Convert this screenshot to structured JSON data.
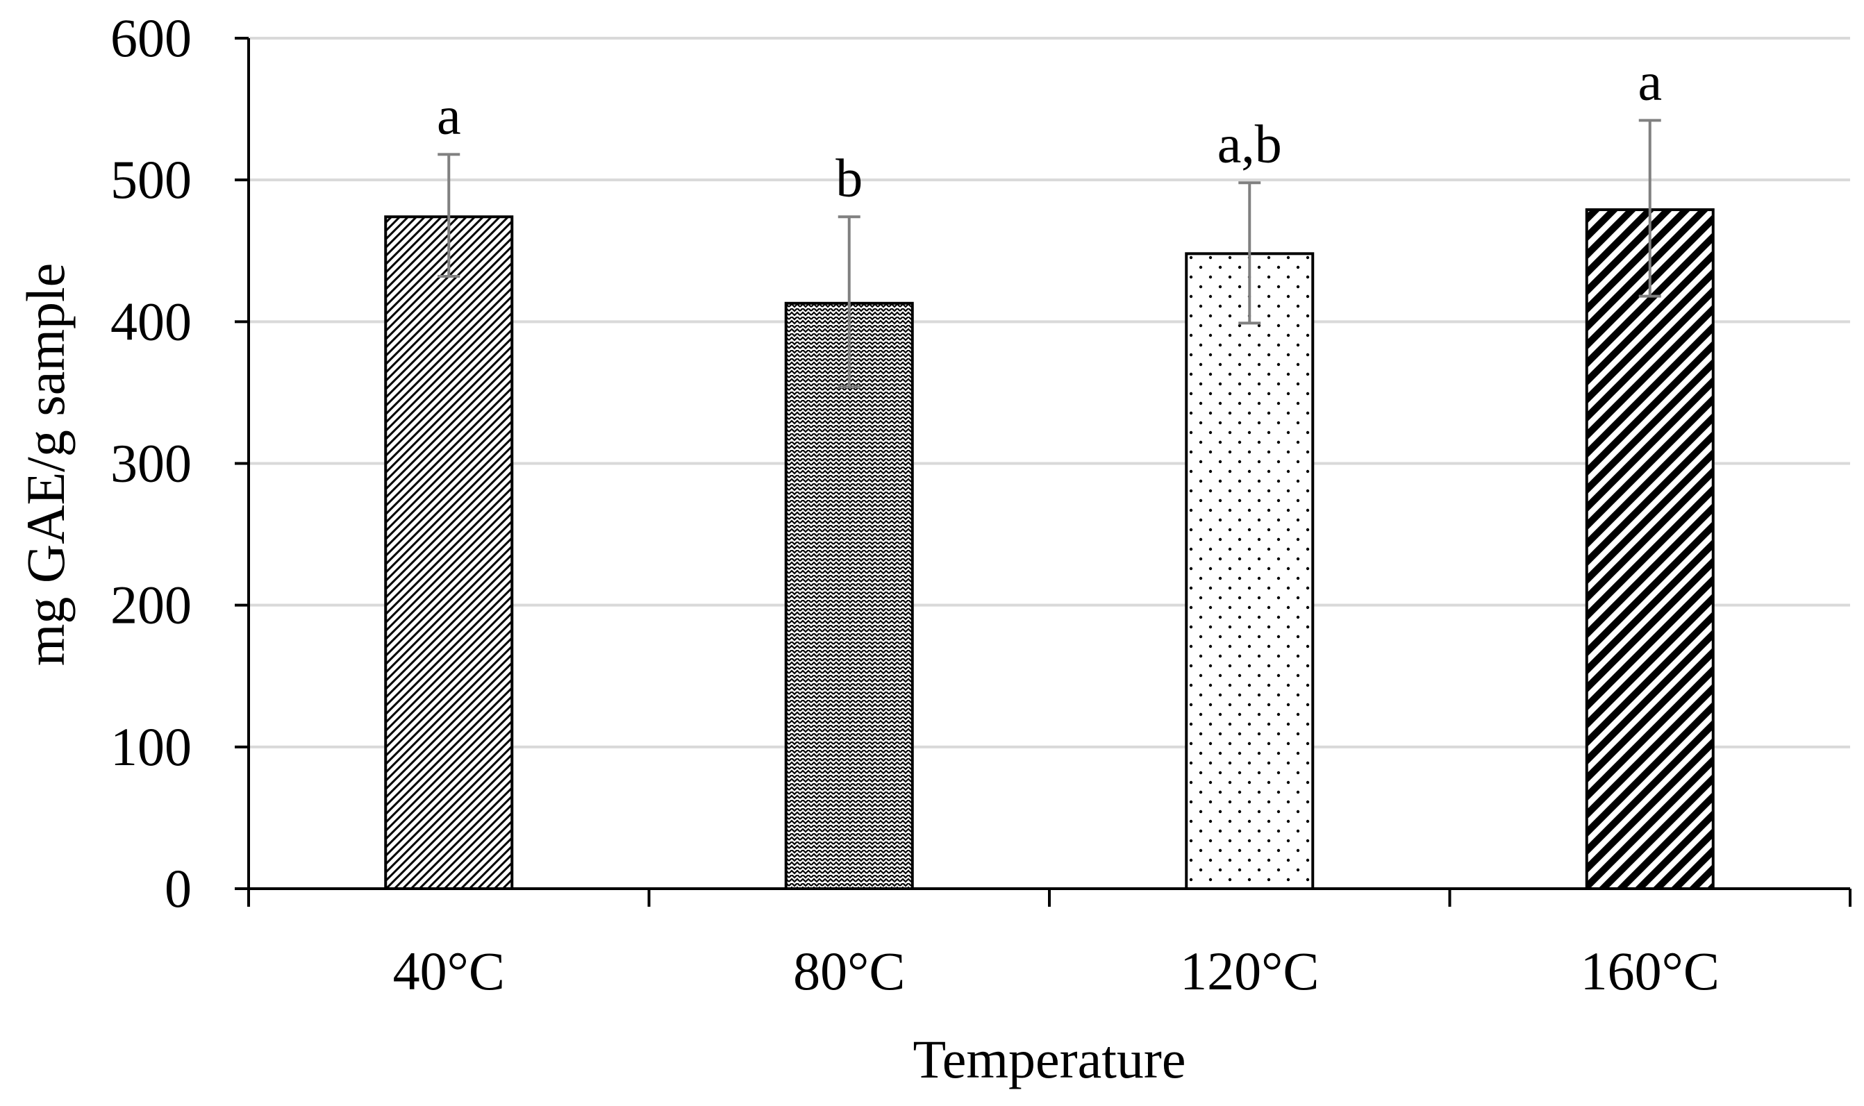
{
  "chart_data": {
    "type": "bar",
    "title": "",
    "xlabel": "Temperature",
    "ylabel": "mg GAE/g sample",
    "ylim": [
      0,
      600
    ],
    "yticks": [
      0,
      100,
      200,
      300,
      400,
      500,
      600
    ],
    "grid": true,
    "categories": [
      "40°C",
      "80°C",
      "120°C",
      "160°C"
    ],
    "values": [
      474,
      413,
      448,
      479
    ],
    "error_upper": [
      518,
      474,
      498,
      542
    ],
    "error_lower": [
      432,
      354,
      399,
      418
    ],
    "significance_labels": [
      "a",
      "b",
      "a,b",
      "a"
    ],
    "bar_patterns": [
      "diagonal-fine",
      "zigzag",
      "dots",
      "diagonal-bold"
    ]
  },
  "colors": {
    "bar_outline": "#000000",
    "gridline": "#d9d9d9",
    "error_bar": "#808080",
    "axis": "#000000",
    "text": "#000000"
  }
}
